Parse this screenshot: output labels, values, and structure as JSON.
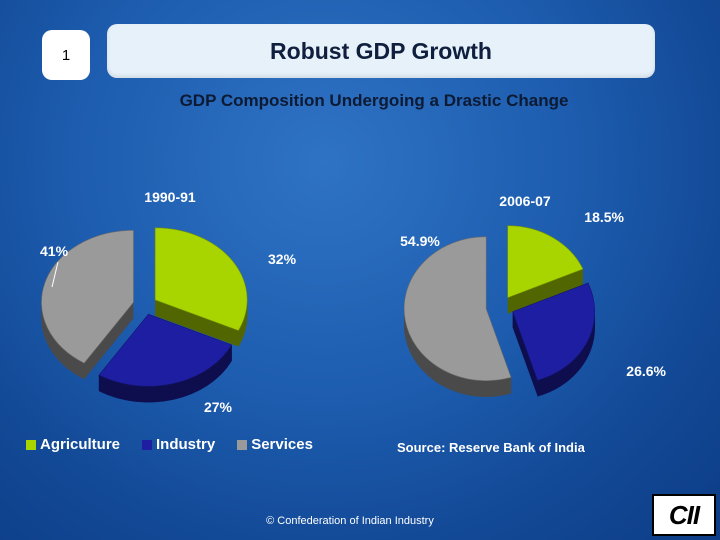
{
  "slide": {
    "number": "1",
    "title": "Robust GDP Growth",
    "subtitle": "GDP Composition Undergoing a Drastic Change",
    "source": "Source: Reserve Bank of India",
    "footer": "© Confederation of Indian Industry",
    "logo_text": "CII"
  },
  "colors": {
    "Agriculture": "#a8d400",
    "Industry": "#1e1ea2",
    "Services": "#9a9a9a"
  },
  "chart_data": [
    {
      "type": "pie",
      "title": "1990-91",
      "categories": [
        "Agriculture",
        "Industry",
        "Services"
      ],
      "values": [
        32,
        27,
        41
      ],
      "labels": [
        "32%",
        "27%",
        "41%"
      ],
      "exploded": true
    },
    {
      "type": "pie",
      "title": "2006-07",
      "categories": [
        "Agriculture",
        "Industry",
        "Services"
      ],
      "values": [
        18.5,
        26.6,
        54.9
      ],
      "labels": [
        "18.5%",
        "26.6%",
        "54.9%"
      ],
      "exploded": true
    }
  ],
  "legend": {
    "placement": "bottom-left",
    "items": [
      "Agriculture",
      "Industry",
      "Services"
    ]
  }
}
